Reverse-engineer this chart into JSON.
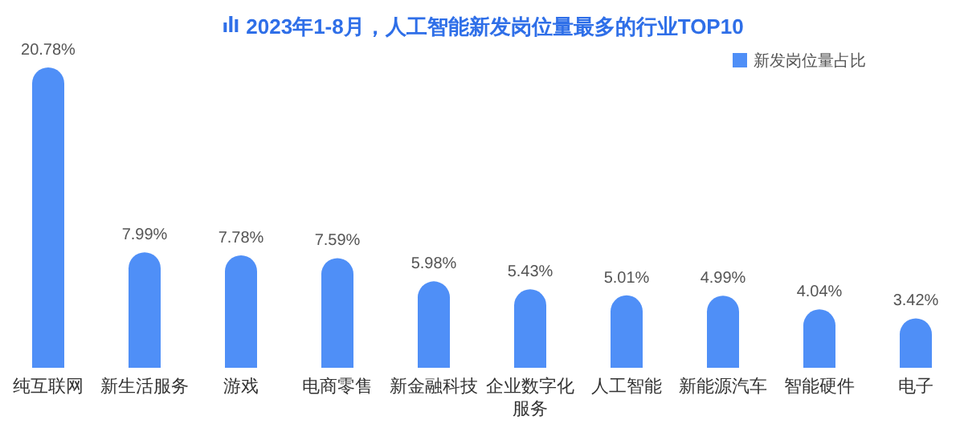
{
  "chart_data": {
    "type": "bar",
    "title": "2023年1-8月，人工智能新发岗位量最多的行业TOP10",
    "categories": [
      "纯互联网",
      "新生活服务",
      "游戏",
      "电商零售",
      "新金融科技",
      "企业数字化服务",
      "人工智能",
      "新能源汽车",
      "智能硬件",
      "电子"
    ],
    "series": [
      {
        "name": "新发岗位量占比",
        "color": "#4f8ff7",
        "values": [
          20.78,
          7.99,
          7.78,
          7.59,
          5.98,
          5.43,
          5.01,
          4.99,
          4.04,
          3.42
        ],
        "value_labels": [
          "20.78%",
          "7.99%",
          "7.78%",
          "7.59%",
          "5.98%",
          "5.43%",
          "5.01%",
          "4.99%",
          "4.04%",
          "3.42%"
        ]
      }
    ],
    "legend": "top right"
  }
}
